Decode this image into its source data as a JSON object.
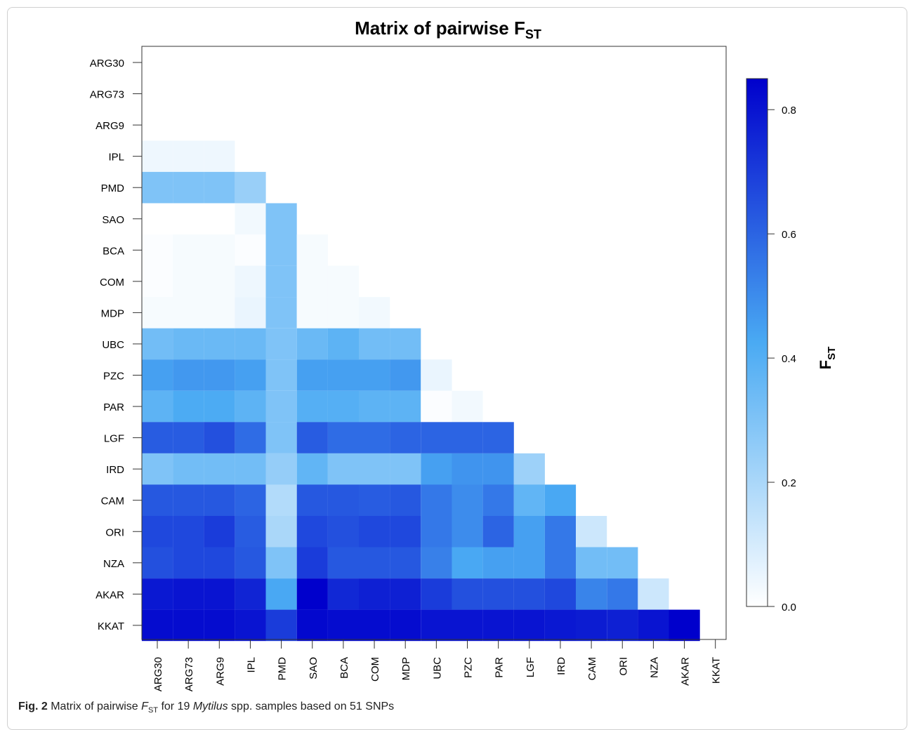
{
  "chart_data": {
    "type": "heatmap",
    "title": "Matrix of pairwise F",
    "title_subscript": "ST",
    "labels": [
      "ARG30",
      "ARG73",
      "ARG9",
      "IPL",
      "PMD",
      "SAO",
      "BCA",
      "COM",
      "MDP",
      "UBC",
      "PZC",
      "PAR",
      "LGF",
      "IRD",
      "CAM",
      "ORI",
      "NZA",
      "AKAR",
      "KKAT"
    ],
    "matrix": [
      [],
      [
        0.0
      ],
      [
        0.0,
        0.0
      ],
      [
        0.04,
        0.04,
        0.04
      ],
      [
        0.3,
        0.3,
        0.3,
        0.24
      ],
      [
        0.0,
        0.0,
        0.0,
        0.03,
        0.3
      ],
      [
        0.01,
        0.02,
        0.02,
        0.01,
        0.3,
        0.02
      ],
      [
        0.01,
        0.02,
        0.02,
        0.04,
        0.3,
        0.02,
        0.02
      ],
      [
        0.02,
        0.02,
        0.02,
        0.05,
        0.3,
        0.02,
        0.02,
        0.03
      ],
      [
        0.33,
        0.35,
        0.35,
        0.35,
        0.3,
        0.35,
        0.38,
        0.33,
        0.33
      ],
      [
        0.45,
        0.47,
        0.47,
        0.45,
        0.3,
        0.45,
        0.45,
        0.45,
        0.47,
        0.05
      ],
      [
        0.38,
        0.42,
        0.42,
        0.38,
        0.3,
        0.4,
        0.4,
        0.38,
        0.38,
        0.01,
        0.03
      ],
      [
        0.62,
        0.62,
        0.65,
        0.58,
        0.3,
        0.62,
        0.58,
        0.58,
        0.6,
        0.6,
        0.6,
        0.6
      ],
      [
        0.3,
        0.33,
        0.33,
        0.33,
        0.25,
        0.37,
        0.3,
        0.3,
        0.3,
        0.45,
        0.48,
        0.48,
        0.23
      ],
      [
        0.63,
        0.63,
        0.63,
        0.6,
        0.18,
        0.63,
        0.63,
        0.62,
        0.63,
        0.55,
        0.5,
        0.55,
        0.37,
        0.43
      ],
      [
        0.67,
        0.67,
        0.7,
        0.62,
        0.2,
        0.67,
        0.65,
        0.67,
        0.67,
        0.55,
        0.5,
        0.6,
        0.45,
        0.55,
        0.12
      ],
      [
        0.65,
        0.67,
        0.67,
        0.63,
        0.3,
        0.7,
        0.63,
        0.63,
        0.63,
        0.53,
        0.43,
        0.45,
        0.45,
        0.55,
        0.33,
        0.33
      ],
      [
        0.79,
        0.8,
        0.8,
        0.76,
        0.43,
        0.85,
        0.75,
        0.77,
        0.77,
        0.7,
        0.65,
        0.65,
        0.65,
        0.67,
        0.52,
        0.55,
        0.12
      ],
      [
        0.82,
        0.82,
        0.82,
        0.8,
        0.7,
        0.83,
        0.82,
        0.82,
        0.82,
        0.8,
        0.8,
        0.8,
        0.8,
        0.79,
        0.78,
        0.77,
        0.8,
        0.85
      ]
    ],
    "colorbar": {
      "title": "F",
      "title_subscript": "ST",
      "range": [
        0.0,
        0.85
      ],
      "ticks": [
        0.0,
        0.2,
        0.4,
        0.6,
        0.8
      ],
      "tick_labels": [
        "0.0",
        "0.2",
        "0.4",
        "0.6",
        "0.8"
      ]
    },
    "colors": {
      "low": "#ffffff",
      "mid": "#4aaaf3",
      "high": "#0000cc"
    },
    "grid": false
  },
  "caption": {
    "label": "Fig. 2",
    "text_before": " Matrix of pairwise ",
    "fst_symbol": "F",
    "fst_subscript": "ST",
    "text_middle": " for 19 ",
    "species_italic": "Mytilus",
    "text_after": " spp. samples based on 51 SNPs"
  }
}
